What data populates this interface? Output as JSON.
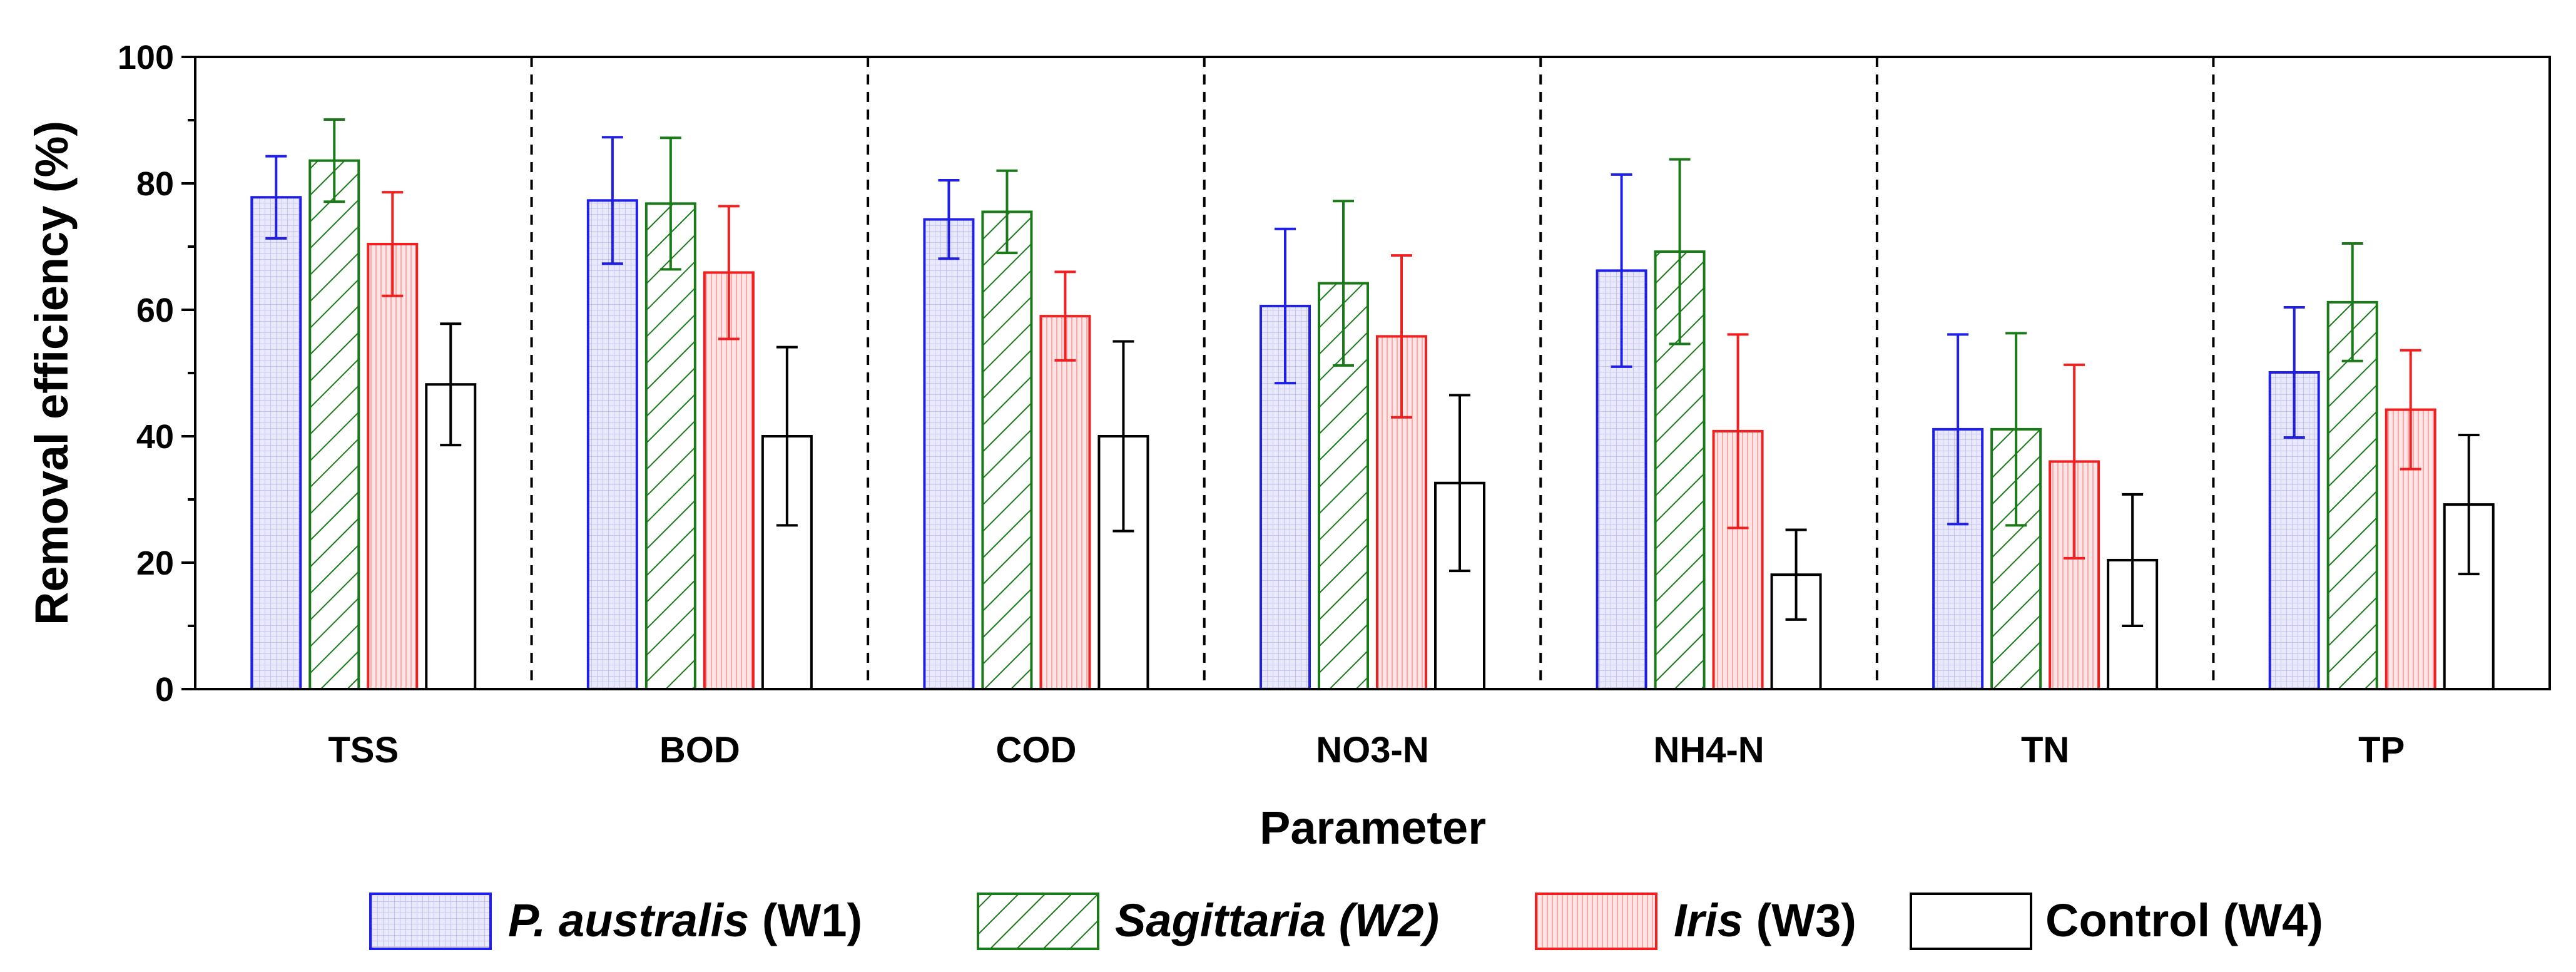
{
  "chart_data": {
    "type": "bar",
    "title": "",
    "xlabel": "Parameter",
    "ylabel": "Removal efficiency (%)",
    "ylim": [
      0,
      100
    ],
    "yticks": [
      0,
      20,
      40,
      60,
      80,
      100
    ],
    "grid": false,
    "legend_position": "bottom",
    "categories": [
      "TSS",
      "BOD",
      "COD",
      "NO3-N",
      "NH4-N",
      "TN",
      "TP"
    ],
    "series": [
      {
        "name": "P. australis (W1)",
        "legend_italic": "P. australis",
        "legend_plain": " (W1)",
        "color": "#1f1fe6",
        "fill": "#e9e9fb",
        "pattern": "grid",
        "values": [
          77.8,
          77.3,
          74.3,
          60.6,
          66.2,
          41.1,
          50.1
        ],
        "errors": [
          6.5,
          10.0,
          6.2,
          12.2,
          15.2,
          15.0,
          10.3
        ]
      },
      {
        "name": "Sagittaria (W2)",
        "legend_italic": "Sagittaria (W2)",
        "legend_plain": "",
        "color": "#1a7a1a",
        "fill": "#ffffff",
        "pattern": "diagonal",
        "values": [
          83.6,
          76.8,
          75.5,
          64.2,
          69.2,
          41.1,
          61.2
        ],
        "errors": [
          6.5,
          10.4,
          6.5,
          13.0,
          14.6,
          15.2,
          9.3
        ]
      },
      {
        "name": "Iris (W3)",
        "legend_italic": "Iris",
        "legend_plain": " (W3)",
        "color": "#f02020",
        "fill": "#fde5e5",
        "pattern": "vertical",
        "values": [
          70.4,
          65.9,
          59.0,
          55.8,
          40.8,
          36.0,
          44.2
        ],
        "errors": [
          8.2,
          10.5,
          7.0,
          12.8,
          15.3,
          15.3,
          9.4
        ]
      },
      {
        "name": "Control (W4)",
        "legend_italic": "",
        "legend_plain": "Control (W4)",
        "color": "#000000",
        "fill": "#ffffff",
        "pattern": "none",
        "values": [
          48.2,
          40.0,
          40.0,
          32.6,
          18.1,
          20.4,
          29.2
        ],
        "errors": [
          9.6,
          14.1,
          15.0,
          13.9,
          7.1,
          10.4,
          11.0
        ]
      }
    ]
  }
}
